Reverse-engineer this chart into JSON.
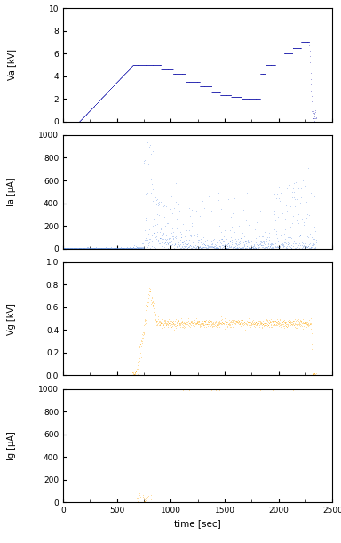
{
  "title": "",
  "xlabel": "time [sec]",
  "xlim": [
    0,
    2500
  ],
  "xticks": [
    0,
    500,
    1000,
    1500,
    2000,
    2500
  ],
  "panel1": {
    "ylabel": "Va [kV]",
    "ylim": [
      0,
      10
    ],
    "yticks": [
      0,
      2,
      4,
      6,
      8,
      10
    ],
    "color": "#1111AA"
  },
  "panel2": {
    "ylabel": "Ia [μA]",
    "ylim": [
      0,
      1000
    ],
    "yticks": [
      0,
      200,
      400,
      600,
      800,
      1000
    ],
    "color": "#5588DD"
  },
  "panel3": {
    "ylabel": "Vg [kV]",
    "ylim": [
      0,
      1.0
    ],
    "yticks": [
      0,
      0.2,
      0.4,
      0.6,
      0.8,
      1.0
    ],
    "color": "#FFA500"
  },
  "panel4": {
    "ylabel": "Ig [μA]",
    "ylim": [
      0,
      1000
    ],
    "yticks": [
      0,
      200,
      400,
      600,
      800,
      1000
    ],
    "color": "#FFA500"
  },
  "background_color": "#FFFFFF",
  "plot_bg_color": "#FFFFFF"
}
